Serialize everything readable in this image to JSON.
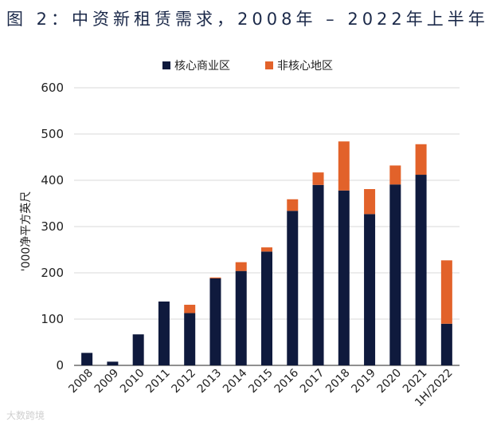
{
  "title": "图 2：中资新租赁需求，2008年 – 2022年上半年",
  "watermark": "大数跨境",
  "colors": {
    "core": "#0f1a3d",
    "noncore": "#e2622a",
    "grid": "#d9d9d9",
    "axis": "#222222"
  },
  "chart_data": {
    "type": "bar",
    "stacked": true,
    "categories": [
      "2008",
      "2009",
      "2010",
      "2011",
      "2012",
      "2013",
      "2014",
      "2015",
      "2016",
      "2017",
      "2018",
      "2019",
      "2020",
      "2021",
      "1H/2022"
    ],
    "series": [
      {
        "name": "核心商业区",
        "values": [
          27,
          8,
          67,
          138,
          113,
          188,
          204,
          246,
          334,
          390,
          378,
          327,
          391,
          412,
          90
        ]
      },
      {
        "name": "非核心地区",
        "values": [
          0,
          0,
          0,
          0,
          18,
          2,
          19,
          9,
          25,
          27,
          106,
          54,
          41,
          66,
          137
        ]
      }
    ],
    "ylabel": "'000净平方英尺",
    "ylim": [
      0,
      600
    ],
    "yticks": [
      0,
      100,
      200,
      300,
      400,
      500,
      600
    ],
    "legend_position": "top-center",
    "grid": true
  }
}
